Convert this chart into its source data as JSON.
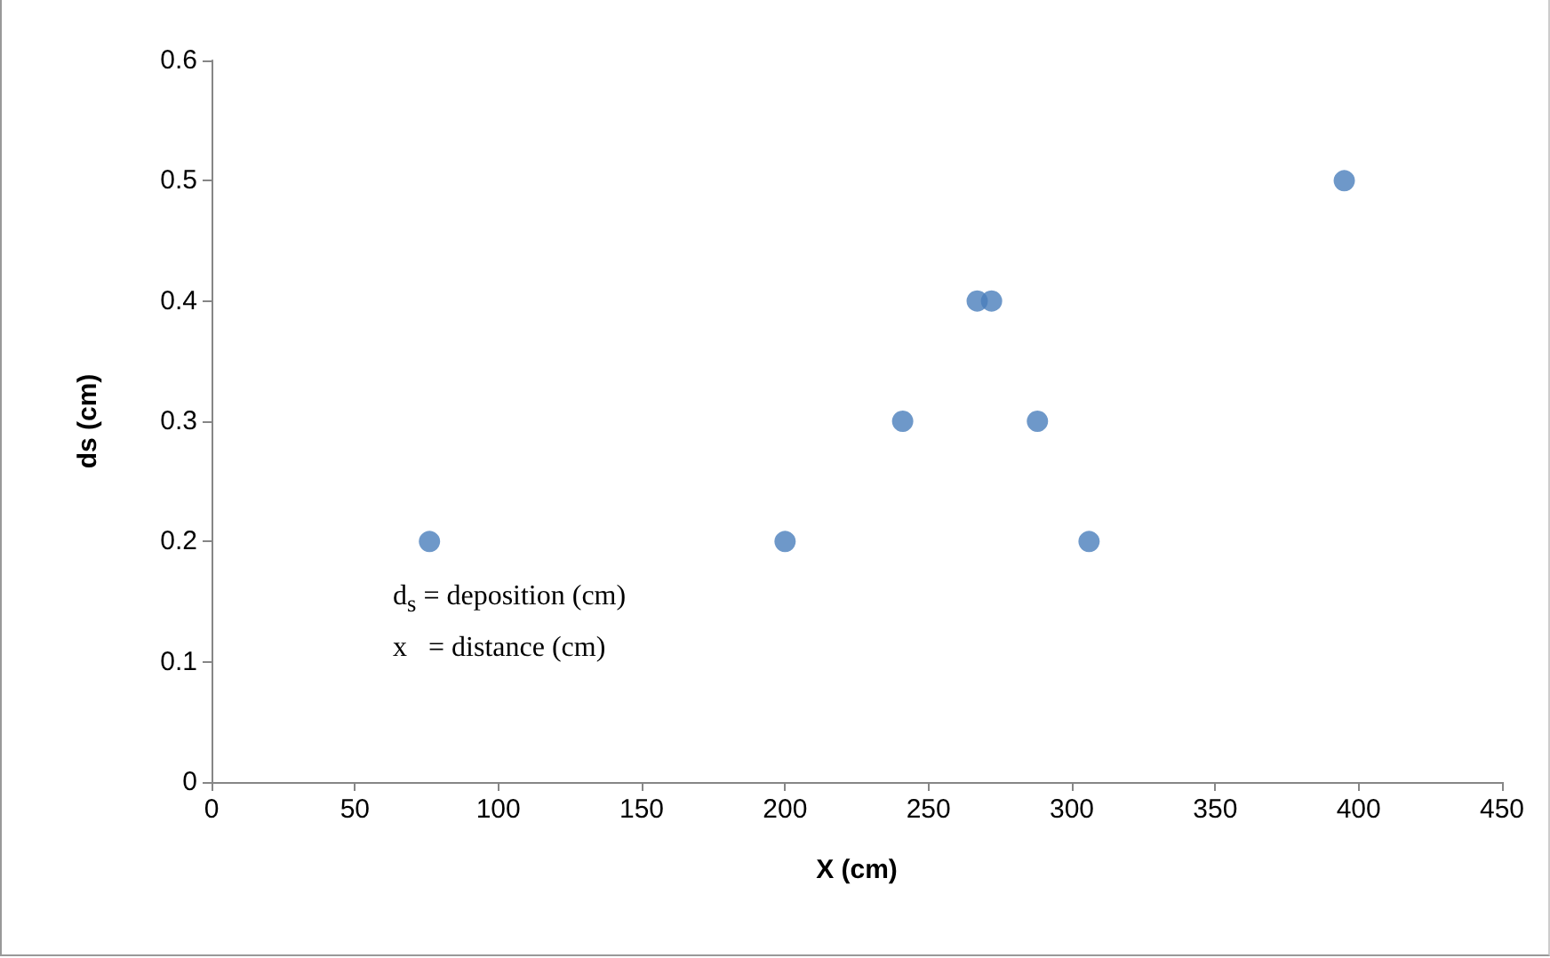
{
  "chart_data": {
    "type": "scatter",
    "xlabel": "X (cm)",
    "ylabel": "ds (cm)",
    "annotations": [
      "d$_{s}$ = deposition (cm)",
      "x   = distance (cm)"
    ],
    "x": [
      76,
      200,
      241,
      267,
      272,
      288,
      306,
      395
    ],
    "values": [
      0.2,
      0.2,
      0.3,
      0.4,
      0.4,
      0.3,
      0.2,
      0.5
    ],
    "color": "#4a7ebb",
    "marker": "circle",
    "xlim": [
      0,
      450
    ],
    "xticks": [
      0,
      50,
      100,
      150,
      200,
      250,
      300,
      350,
      400,
      450
    ],
    "ylim": [
      0,
      0.6
    ],
    "yticks": [
      0,
      0.1,
      0.2,
      0.3,
      0.4,
      0.5,
      0.6
    ],
    "grid": false
  }
}
